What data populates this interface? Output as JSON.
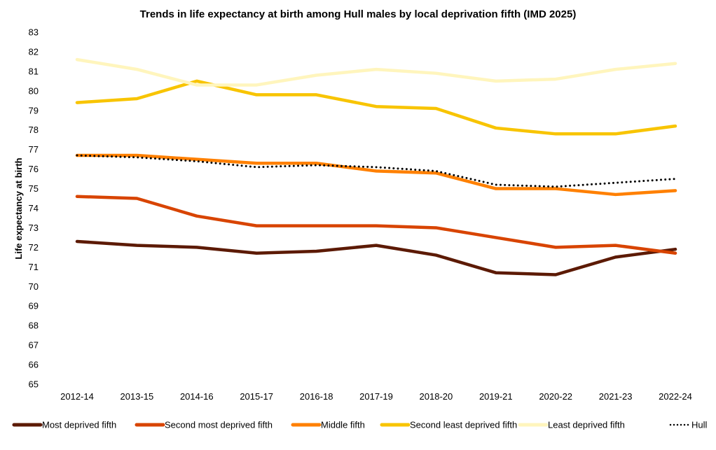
{
  "chart_data": {
    "type": "line",
    "title": "Trends in life expectancy at birth among Hull males by local deprivation fifth (IMD 2025)",
    "xlabel": "",
    "ylabel": "Life expectancy at birth",
    "ylim": [
      65,
      83
    ],
    "yticks": [
      65,
      66,
      67,
      68,
      69,
      70,
      71,
      72,
      73,
      74,
      75,
      76,
      77,
      78,
      79,
      80,
      81,
      82,
      83
    ],
    "grid": false,
    "legend_position": "bottom",
    "categories": [
      "2012-14",
      "2013-15",
      "2014-16",
      "2015-17",
      "2016-18",
      "2017-19",
      "2018-20",
      "2019-21",
      "2020-22",
      "2021-23",
      "2022-24"
    ],
    "series": [
      {
        "name": "Most deprived fifth",
        "color": "#5c1a04",
        "style": "solid",
        "values": [
          72.3,
          72.1,
          72.0,
          71.7,
          71.8,
          72.1,
          71.6,
          70.7,
          70.6,
          71.5,
          71.9
        ]
      },
      {
        "name": "Second most deprived fifth",
        "color": "#d84400",
        "style": "solid",
        "values": [
          74.6,
          74.5,
          73.6,
          73.1,
          73.1,
          73.1,
          73.0,
          72.5,
          72.0,
          72.1,
          71.7
        ]
      },
      {
        "name": "Middle fifth",
        "color": "#ff8000",
        "style": "solid",
        "values": [
          76.7,
          76.7,
          76.5,
          76.3,
          76.3,
          75.9,
          75.8,
          75.0,
          75.0,
          74.7,
          74.9
        ]
      },
      {
        "name": "Second least deprived fifth",
        "color": "#f8c400",
        "style": "solid",
        "values": [
          79.4,
          79.6,
          80.5,
          79.8,
          79.8,
          79.2,
          79.1,
          78.1,
          77.8,
          77.8,
          78.2
        ]
      },
      {
        "name": "Least deprived fifth",
        "color": "#fff5bd",
        "style": "solid",
        "values": [
          81.6,
          81.1,
          80.3,
          80.3,
          80.8,
          81.1,
          80.9,
          80.5,
          80.6,
          81.1,
          81.4
        ]
      },
      {
        "name": "Hull",
        "color": "#000000",
        "style": "dotted",
        "values": [
          76.7,
          76.6,
          76.4,
          76.1,
          76.2,
          76.1,
          75.9,
          75.2,
          75.1,
          75.3,
          75.5
        ]
      }
    ]
  }
}
